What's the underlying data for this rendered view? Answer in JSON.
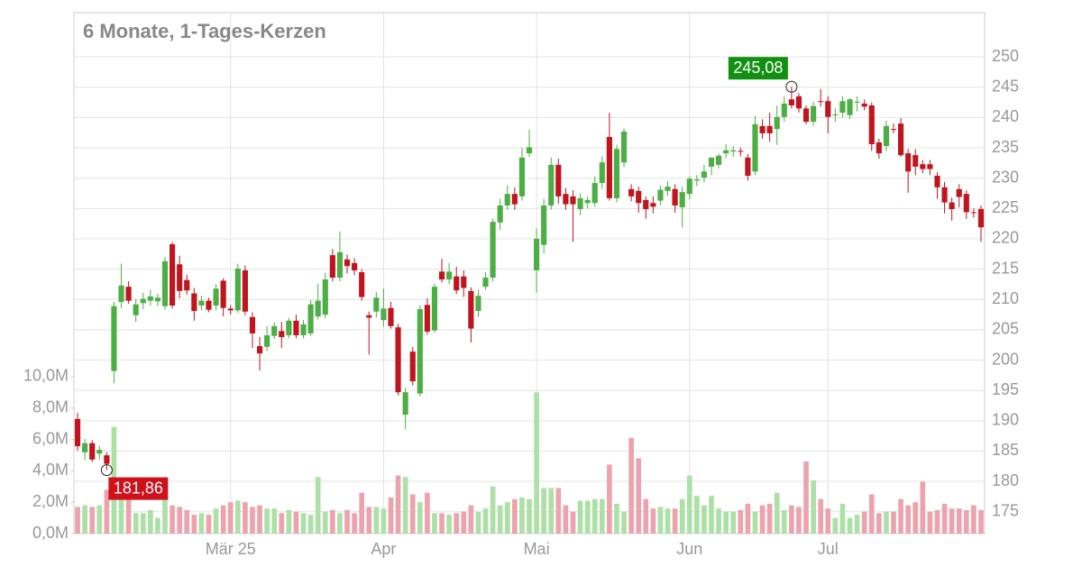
{
  "chart_data": {
    "type": "candlestick",
    "title": "6 Monate, 1-Tages-Kerzen",
    "categories": [
      null,
      null,
      null,
      null,
      null,
      null,
      null,
      null,
      null,
      null,
      null,
      null,
      null,
      null,
      null,
      null,
      null,
      null,
      null,
      null,
      null,
      "Mär 25",
      null,
      null,
      null,
      null,
      null,
      null,
      null,
      null,
      null,
      null,
      null,
      null,
      null,
      null,
      null,
      null,
      null,
      null,
      null,
      null,
      "Apr",
      null,
      null,
      null,
      null,
      null,
      null,
      null,
      null,
      null,
      null,
      null,
      null,
      null,
      null,
      null,
      null,
      null,
      null,
      null,
      null,
      "Mai",
      null,
      null,
      null,
      null,
      null,
      null,
      null,
      null,
      null,
      null,
      null,
      null,
      null,
      null,
      null,
      null,
      null,
      null,
      null,
      null,
      "Jun",
      null,
      null,
      null,
      null,
      null,
      null,
      null,
      null,
      null,
      null,
      null,
      null,
      null,
      null,
      null,
      null,
      null,
      null,
      "Jul",
      null,
      null,
      null,
      null,
      null,
      null,
      null,
      null,
      null,
      null,
      null,
      null,
      null,
      null,
      null,
      null,
      null,
      null,
      null,
      null,
      null
    ],
    "ohlc": [
      [
        190.3,
        191.3,
        185.1,
        185.8
      ],
      [
        184.8,
        187.0,
        183.5,
        186.3
      ],
      [
        186.3,
        186.8,
        183.2,
        183.6
      ],
      [
        184.6,
        185.9,
        183.6,
        185.2
      ],
      [
        184.3,
        184.8,
        181.86,
        182.9
      ],
      [
        198.2,
        209.6,
        196.2,
        208.9
      ],
      [
        209.6,
        215.9,
        208.6,
        212.3
      ],
      [
        212.1,
        213.0,
        209.3,
        209.8
      ],
      [
        207.4,
        210.1,
        206.3,
        209.2
      ],
      [
        209.4,
        211.1,
        208.4,
        210.1
      ],
      [
        209.8,
        211.6,
        209.0,
        210.5
      ],
      [
        209.7,
        210.9,
        208.9,
        210.3
      ],
      [
        208.9,
        217.0,
        208.3,
        216.3
      ],
      [
        219.1,
        219.5,
        208.5,
        209.0
      ],
      [
        215.8,
        217.2,
        210.2,
        211.4
      ],
      [
        213.2,
        214.1,
        210.8,
        211.5
      ],
      [
        211.0,
        211.9,
        206.5,
        208.1
      ],
      [
        209.0,
        210.6,
        208.2,
        209.8
      ],
      [
        209.8,
        210.3,
        207.9,
        208.3
      ],
      [
        209.0,
        212.5,
        208.2,
        211.8
      ],
      [
        213.1,
        213.5,
        207.2,
        208.6
      ],
      [
        208.5,
        209.1,
        207.5,
        208.2
      ],
      [
        208.2,
        215.9,
        207.8,
        215.1
      ],
      [
        214.8,
        215.6,
        207.4,
        208.0
      ],
      [
        207.1,
        207.9,
        202.0,
        204.4
      ],
      [
        202.3,
        203.8,
        198.3,
        201.1
      ],
      [
        202.2,
        205.6,
        201.5,
        204.1
      ],
      [
        204.0,
        206.2,
        203.5,
        205.6
      ],
      [
        204.8,
        206.3,
        202.0,
        203.8
      ],
      [
        204.1,
        207.0,
        203.6,
        206.5
      ],
      [
        206.5,
        207.5,
        203.6,
        204.1
      ],
      [
        204.1,
        206.6,
        203.6,
        205.9
      ],
      [
        204.4,
        209.9,
        204.0,
        209.2
      ],
      [
        207.2,
        212.6,
        206.7,
        209.8
      ],
      [
        207.5,
        214.4,
        206.9,
        213.3
      ],
      [
        217.3,
        218.3,
        213.0,
        213.6
      ],
      [
        213.6,
        221.2,
        213.0,
        217.8
      ],
      [
        216.6,
        217.4,
        214.3,
        215.5
      ],
      [
        216.0,
        216.8,
        214.0,
        214.8
      ],
      [
        214.5,
        215.0,
        209.8,
        210.4
      ],
      [
        207.4,
        208.0,
        200.9,
        207.0
      ],
      [
        208.0,
        211.2,
        207.0,
        210.3
      ],
      [
        206.6,
        211.8,
        205.5,
        208.5
      ],
      [
        208.6,
        209.6,
        205.2,
        205.6
      ],
      [
        205.4,
        206.0,
        194.2,
        194.7
      ],
      [
        191.0,
        195.5,
        188.6,
        194.7
      ],
      [
        201.4,
        202.2,
        195.8,
        196.5
      ],
      [
        194.5,
        209.0,
        194.0,
        208.4
      ],
      [
        209.1,
        210.2,
        204.2,
        204.7
      ],
      [
        204.9,
        212.6,
        204.5,
        212.1
      ],
      [
        214.6,
        216.7,
        212.8,
        213.3
      ],
      [
        213.3,
        216.0,
        212.5,
        214.6
      ],
      [
        213.8,
        215.4,
        210.9,
        211.5
      ],
      [
        213.8,
        214.8,
        210.4,
        211.9
      ],
      [
        211.4,
        212.0,
        202.9,
        205.2
      ],
      [
        208.1,
        211.6,
        207.1,
        210.6
      ],
      [
        212.1,
        214.5,
        211.6,
        213.6
      ],
      [
        213.6,
        223.3,
        213.0,
        222.8
      ],
      [
        222.7,
        226.6,
        221.5,
        225.5
      ],
      [
        225.5,
        228.8,
        224.8,
        227.4
      ],
      [
        227.4,
        228.5,
        224.8,
        225.7
      ],
      [
        227.0,
        235.0,
        226.3,
        233.4
      ],
      [
        234.1,
        238.0,
        233.5,
        235.1
      ],
      [
        214.8,
        221.7,
        211.1,
        220.0
      ],
      [
        219.0,
        226.6,
        217.6,
        225.5
      ],
      [
        225.5,
        233.4,
        224.8,
        232.2
      ],
      [
        232.2,
        233.2,
        225.8,
        227.0
      ],
      [
        227.4,
        228.4,
        224.8,
        225.7
      ],
      [
        227.0,
        228.0,
        219.5,
        225.7
      ],
      [
        224.9,
        227.5,
        223.9,
        226.7
      ],
      [
        225.9,
        227.0,
        225.0,
        226.4
      ],
      [
        225.9,
        230.3,
        225.3,
        229.2
      ],
      [
        229.2,
        233.6,
        228.2,
        232.6
      ],
      [
        236.8,
        240.8,
        226.3,
        226.7
      ],
      [
        226.7,
        235.5,
        226.0,
        234.8
      ],
      [
        232.6,
        238.2,
        231.8,
        237.7
      ],
      [
        228.2,
        229.0,
        226.2,
        227.0
      ],
      [
        227.9,
        228.6,
        224.3,
        225.9
      ],
      [
        226.4,
        227.0,
        223.3,
        224.9
      ],
      [
        225.9,
        227.0,
        224.2,
        225.3
      ],
      [
        226.3,
        228.8,
        225.5,
        228.1
      ],
      [
        227.9,
        229.5,
        227.1,
        228.6
      ],
      [
        228.2,
        229.0,
        224.3,
        225.5
      ],
      [
        225.2,
        228.6,
        221.9,
        227.7
      ],
      [
        227.4,
        230.3,
        226.5,
        229.9
      ],
      [
        229.6,
        230.5,
        228.7,
        229.8
      ],
      [
        230.1,
        232.2,
        229.3,
        231.1
      ],
      [
        231.9,
        233.4,
        230.5,
        233.4
      ],
      [
        232.2,
        234.1,
        231.6,
        233.7
      ],
      [
        234.1,
        235.6,
        233.3,
        234.6
      ],
      [
        234.4,
        235.3,
        233.5,
        234.6
      ],
      [
        234.5,
        235.0,
        233.6,
        234.4
      ],
      [
        233.4,
        234.0,
        229.6,
        230.4
      ],
      [
        231.1,
        240.3,
        230.5,
        238.9
      ],
      [
        238.6,
        239.7,
        236.5,
        237.4
      ],
      [
        238.6,
        240.8,
        236.0,
        237.4
      ],
      [
        238.1,
        242.0,
        235.5,
        240.1
      ],
      [
        240.1,
        243.5,
        239.3,
        242.3
      ],
      [
        243.0,
        245.08,
        241.5,
        242.0
      ],
      [
        243.5,
        244.0,
        240.8,
        241.5
      ],
      [
        241.5,
        242.0,
        238.9,
        239.3
      ],
      [
        239.3,
        242.6,
        238.6,
        241.9
      ],
      [
        242.7,
        244.7,
        241.8,
        242.6
      ],
      [
        242.7,
        243.5,
        237.4,
        240.1
      ],
      [
        240.5,
        241.5,
        239.3,
        240.5
      ],
      [
        240.8,
        243.5,
        240.0,
        242.7
      ],
      [
        240.4,
        243.2,
        239.8,
        243.0
      ],
      [
        242.5,
        243.5,
        241.0,
        242.6
      ],
      [
        242.3,
        243.0,
        241.2,
        241.8
      ],
      [
        242.0,
        242.5,
        234.5,
        235.6
      ],
      [
        235.9,
        236.5,
        233.2,
        234.1
      ],
      [
        235.3,
        239.5,
        234.5,
        238.6
      ],
      [
        238.1,
        239.0,
        237.4,
        238.0
      ],
      [
        239.0,
        239.9,
        233.5,
        233.8
      ],
      [
        234.1,
        234.8,
        227.6,
        231.1
      ],
      [
        233.8,
        234.8,
        230.5,
        231.9
      ],
      [
        232.3,
        233.0,
        230.8,
        231.5
      ],
      [
        232.3,
        233.0,
        230.5,
        231.5
      ],
      [
        230.4,
        231.0,
        226.6,
        228.5
      ],
      [
        228.5,
        229.4,
        224.2,
        226.0
      ],
      [
        226.0,
        226.8,
        223.0,
        224.9
      ],
      [
        228.2,
        229.0,
        225.2,
        226.9
      ],
      [
        227.4,
        228.0,
        223.3,
        224.4
      ],
      [
        224.4,
        225.0,
        223.5,
        224.3
      ],
      [
        224.9,
        225.5,
        219.5,
        221.9
      ]
    ],
    "volume": [
      1.7,
      1.8,
      1.7,
      1.8,
      2.8,
      6.8,
      2.6,
      2.3,
      1.3,
      1.3,
      1.5,
      1.0,
      2.2,
      1.8,
      1.7,
      1.5,
      1.2,
      1.3,
      1.2,
      1.6,
      1.8,
      2.0,
      2.1,
      2.0,
      1.7,
      1.8,
      1.6,
      1.6,
      1.3,
      1.5,
      1.4,
      1.3,
      1.2,
      3.6,
      1.4,
      1.5,
      1.3,
      1.5,
      1.3,
      2.6,
      1.7,
      1.7,
      1.6,
      2.3,
      3.7,
      3.6,
      2.5,
      2.0,
      2.6,
      1.3,
      1.3,
      1.2,
      1.3,
      1.4,
      1.8,
      1.4,
      1.6,
      3.0,
      1.8,
      2.0,
      2.2,
      2.3,
      2.2,
      9.0,
      2.9,
      2.9,
      2.9,
      1.8,
      1.4,
      2.1,
      2.1,
      2.2,
      2.2,
      4.4,
      1.9,
      1.4,
      6.1,
      4.8,
      2.2,
      1.6,
      1.7,
      1.6,
      1.6,
      2.2,
      3.7,
      2.4,
      1.8,
      2.4,
      1.6,
      1.4,
      1.4,
      1.5,
      1.9,
      1.4,
      1.8,
      1.9,
      2.6,
      1.5,
      1.8,
      1.7,
      4.6,
      3.4,
      2.2,
      1.6,
      1.0,
      1.9,
      1.0,
      1.2,
      1.4,
      2.5,
      1.3,
      1.4,
      1.4,
      2.2,
      1.8,
      2.0,
      3.3,
      1.4,
      1.5,
      1.9,
      1.6,
      1.6,
      1.5,
      1.8,
      1.5
    ],
    "ylim": [
      171.4,
      257.3
    ],
    "yticks": [
      175,
      180,
      185,
      190,
      195,
      200,
      205,
      210,
      215,
      220,
      225,
      230,
      235,
      240,
      245,
      250
    ],
    "y2lim": [
      0,
      33.2
    ],
    "y2ticks": [
      {
        "value": 0,
        "label": "0,0M"
      },
      {
        "value": 2,
        "label": "2,0M"
      },
      {
        "value": 4,
        "label": "4,0M"
      },
      {
        "value": 6,
        "label": "6,0M"
      },
      {
        "value": 8,
        "label": "8,0M"
      },
      {
        "value": 10,
        "label": "10,0M"
      }
    ],
    "up_color": "#4cae45",
    "down_color": "#c0141e",
    "up_volume_color": "#ade0a6",
    "down_volume_color": "#eda3ad",
    "max_label": "245,08",
    "max_label_color": "#129012",
    "min_label": "181,86",
    "min_label_color": "#d0101a",
    "grid": true
  }
}
